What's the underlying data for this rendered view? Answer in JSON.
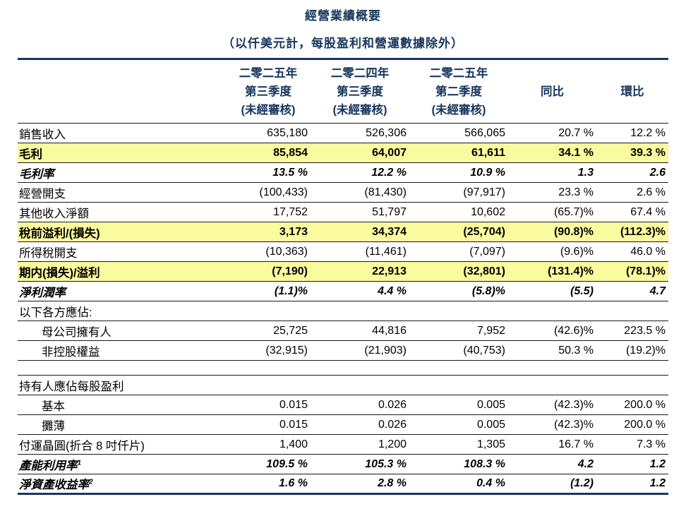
{
  "title": "經營業績概要",
  "subtitle": "（以仟美元計，每股盈利和營運數據除外）",
  "colors": {
    "accent_navy": "#17365D",
    "highlight_yellow": "#FAFA9E"
  },
  "table": {
    "header_columns": [
      {
        "lines": [
          "二零二五年",
          "第三季度",
          "(未經審核)"
        ]
      },
      {
        "lines": [
          "二零二四年",
          "第三季度",
          "(未經審核)"
        ]
      },
      {
        "lines": [
          "二零二五年",
          "第二季度",
          "(未經審核)"
        ]
      },
      {
        "lines": [
          "",
          "同比",
          ""
        ]
      },
      {
        "lines": [
          "",
          "環比",
          ""
        ]
      }
    ],
    "rows": [
      {
        "label": "銷售收入",
        "values": [
          "635,180",
          "526,306",
          "566,065",
          "20.7 %",
          "12.2 %"
        ],
        "style": "normal",
        "indent": false
      },
      {
        "label": "毛利",
        "values": [
          "85,854",
          "64,007",
          "61,611",
          "34.1 %",
          "39.3 %"
        ],
        "style": "highlight",
        "indent": false
      },
      {
        "label": "毛利率",
        "values": [
          "13.5 %",
          "12.2 %",
          "10.9 %",
          "1.3",
          "2.6"
        ],
        "style": "bold-italic",
        "indent": false
      },
      {
        "label": "經營開支",
        "values": [
          "(100,433)",
          "(81,430)",
          "(97,917)",
          "23.3 %",
          "2.6 %"
        ],
        "style": "normal",
        "indent": false
      },
      {
        "label": "其他收入淨額",
        "values": [
          "17,752",
          "51,797",
          "10,602",
          "(65.7)%",
          "67.4 %"
        ],
        "style": "normal",
        "indent": false
      },
      {
        "label": "稅前溢利/(損失)",
        "values": [
          "3,173",
          "34,374",
          "(25,704)",
          "(90.8)%",
          "(112.3)%"
        ],
        "style": "highlight",
        "indent": false
      },
      {
        "label": "所得稅開支",
        "values": [
          "(10,363)",
          "(11,461)",
          "(7,097)",
          "(9.6)%",
          "46.0 %"
        ],
        "style": "normal",
        "indent": false
      },
      {
        "label": "期内(損失)/溢利",
        "values": [
          "(7,190)",
          "22,913",
          "(32,801)",
          "(131.4)%",
          "(78.1)%"
        ],
        "style": "highlight",
        "indent": false
      },
      {
        "label": "淨利潤率",
        "values": [
          "(1.1)%",
          "4.4 %",
          "(5.8)%",
          "(5.5)",
          "4.7"
        ],
        "style": "bold-italic",
        "indent": false
      },
      {
        "label": "以下各方應佔:",
        "values": [
          "",
          "",
          "",
          "",
          ""
        ],
        "style": "normal",
        "indent": false
      },
      {
        "label": "母公司擁有人",
        "values": [
          "25,725",
          "44,816",
          "7,952",
          "(42.6)%",
          "223.5 %"
        ],
        "style": "normal",
        "indent": true
      },
      {
        "label": "非控股權益",
        "values": [
          "(32,915)",
          "(21,903)",
          "(40,753)",
          "50.3 %",
          "(19.2)%"
        ],
        "style": "normal",
        "indent": true
      },
      {
        "label": "",
        "values": [
          "",
          "",
          "",
          "",
          ""
        ],
        "style": "blank",
        "indent": false
      },
      {
        "label": "持有人應佔每股盈利",
        "values": [
          "",
          "",
          "",
          "",
          ""
        ],
        "style": "normal",
        "indent": false
      },
      {
        "label": "基本",
        "values": [
          "0.015",
          "0.026",
          "0.005",
          "(42.3)%",
          "200.0 %"
        ],
        "style": "normal",
        "indent": true
      },
      {
        "label": "攤薄",
        "values": [
          "0.015",
          "0.026",
          "0.005",
          "(42.3)%",
          "200.0 %"
        ],
        "style": "normal",
        "indent": true
      },
      {
        "label": "付運晶圓(折合 8 吋仟片)",
        "values": [
          "1,400",
          "1,200",
          "1,305",
          "16.7 %",
          "7.3 %"
        ],
        "style": "normal",
        "indent": false
      },
      {
        "label": "產能利用率",
        "label_sup": "1",
        "values": [
          "109.5 %",
          "105.3 %",
          "108.3 %",
          "4.2",
          "1.2"
        ],
        "style": "bold-italic",
        "indent": false
      },
      {
        "label": "淨資產收益率",
        "label_sup": "2",
        "values": [
          "1.6 %",
          "2.8 %",
          "0.4 %",
          "(1.2)",
          "1.2"
        ],
        "style": "bold-italic",
        "indent": false
      }
    ]
  }
}
